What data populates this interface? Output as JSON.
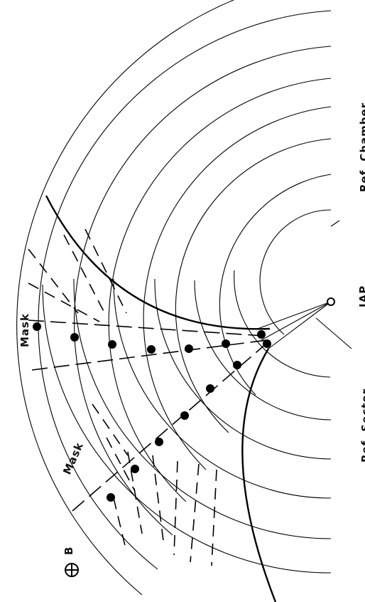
{
  "labels": {
    "ref_chamber": "Ref. Chamber",
    "ref_sector": "Ref. Sector",
    "iap": "IAP",
    "mask_top": "Mask",
    "mask_bottom": "Mask",
    "beam": "B"
  },
  "icons": {
    "beam_symbol": "circled-plus-icon",
    "iap_marker": "open-circle-icon",
    "detector_hit": "filled-dot-icon"
  },
  "colors": {
    "ink": "#000000",
    "paper": "#ffffff"
  }
}
